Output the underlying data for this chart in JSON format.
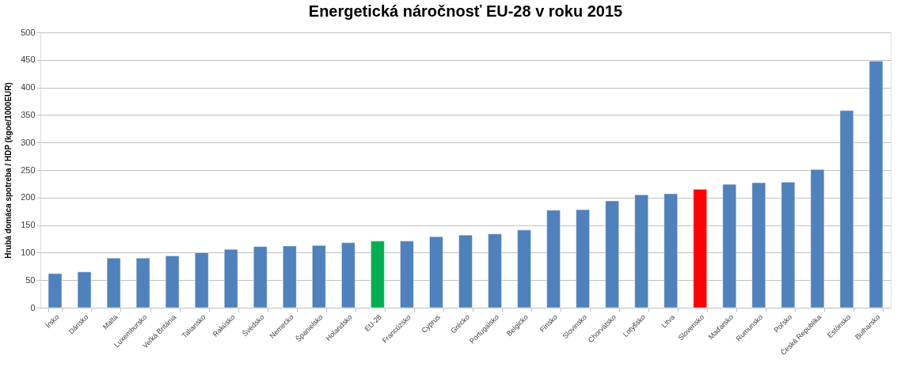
{
  "chart_data": {
    "type": "bar",
    "title": "Energetická náročnosť  EU-28 v roku 2015",
    "ylabel": "Hrubá domáca spotreba / HDP (kgoe/1000EUR)",
    "categories": [
      "Írsko",
      "Dánsko",
      "Malta",
      "Luxembursko",
      "Veľká Británia",
      "Taliansko",
      "Rakúsko",
      "Švédsko",
      "Nemecko",
      "Španielsko",
      "Holandsko",
      "EU-28",
      "Francúzsko",
      "Cyprus",
      "Grécko",
      "Portugalsko",
      "Belgicko",
      "Fínsko",
      "Slovinsko",
      "Chorvátsko",
      "Lotyšsko",
      "Litva",
      "Slovensko",
      "Maďarsko",
      "Rumunsko",
      "Poľsko",
      "Česká Republika",
      "Estónsko",
      "Bulharsko"
    ],
    "values": [
      62,
      65,
      90,
      90,
      94,
      100,
      106,
      111,
      112,
      113,
      118,
      121,
      121,
      129,
      132,
      134,
      141,
      177,
      178,
      194,
      205,
      207,
      215,
      224,
      227,
      228,
      251,
      358,
      448
    ],
    "colors": [
      "#4f81bd",
      "#4f81bd",
      "#4f81bd",
      "#4f81bd",
      "#4f81bd",
      "#4f81bd",
      "#4f81bd",
      "#4f81bd",
      "#4f81bd",
      "#4f81bd",
      "#4f81bd",
      "#00b050",
      "#4f81bd",
      "#4f81bd",
      "#4f81bd",
      "#4f81bd",
      "#4f81bd",
      "#4f81bd",
      "#4f81bd",
      "#4f81bd",
      "#4f81bd",
      "#4f81bd",
      "#ff0000",
      "#4f81bd",
      "#4f81bd",
      "#4f81bd",
      "#4f81bd",
      "#4f81bd",
      "#4f81bd"
    ],
    "ylim": [
      0,
      500
    ],
    "yticks": [
      0,
      50,
      100,
      150,
      200,
      250,
      300,
      350,
      400,
      450,
      500
    ],
    "grid": "y"
  }
}
